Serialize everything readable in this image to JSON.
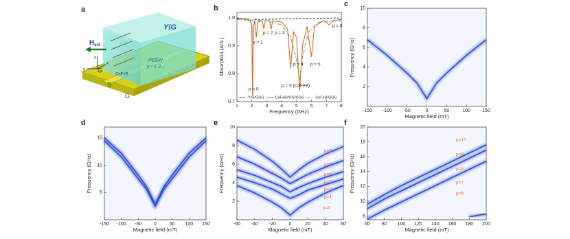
{
  "illustration": {
    "panel": "a",
    "material": "YIG",
    "field": "H",
    "field_sub": "ext",
    "wave": "PSSW",
    "modes": "p = 1, 2...",
    "stripline": "CoFeB",
    "left": "G",
    "signal": "S",
    "right": "G",
    "axis_x": "x",
    "axis_y": "y",
    "axis_z": "z"
  },
  "chart_data": [
    {
      "type": "line",
      "panel": "b",
      "xlabel": "Frequency (GHz)",
      "ylabel": "Absorption (Arb.)",
      "xlim": [
        1,
        8
      ],
      "xticks": [
        1,
        2,
        3,
        4,
        5,
        6,
        7,
        8
      ],
      "ylim": [
        0.7,
        1.02
      ],
      "yticks": [
        0.7,
        0.8,
        0.9,
        {
          "value": 1,
          "label": "1.0"
        }
      ],
      "legend": "bottom",
      "series": [
        {
          "name": "YIG/GGG",
          "color": "#1f2a6b",
          "linestyle": "dashed",
          "x": [
            1.0,
            1.9,
            2.0,
            2.05,
            2.1,
            2.2,
            8.0
          ],
          "values": [
            1.0,
            0.995,
            0.97,
            0.73,
            0.97,
            0.995,
            1.0
          ]
        },
        {
          "name": "CoFeB/YIG/GGG",
          "color": "#e0661a",
          "linestyle": "solid",
          "x": [
            1.0,
            1.5,
            1.9,
            2.0,
            2.05,
            2.1,
            2.2,
            2.3,
            2.4,
            2.7,
            2.8,
            2.9,
            3.2,
            3.3,
            3.4,
            4.0,
            4.4,
            4.6,
            4.8,
            5.0,
            5.2,
            5.4,
            5.7,
            6.0,
            6.2,
            6.8,
            7.2,
            7.4,
            8.0
          ],
          "values": [
            0.998,
            0.995,
            0.99,
            0.97,
            0.72,
            0.97,
            0.985,
            0.93,
            0.985,
            0.99,
            0.96,
            0.99,
            0.99,
            0.96,
            0.99,
            0.985,
            0.96,
            0.82,
            0.95,
            0.93,
            0.74,
            0.9,
            0.97,
            0.86,
            0.97,
            0.99,
            0.975,
            0.99,
            0.995
          ]
        },
        {
          "name": "CoFeB/GGG",
          "color": "#6aa84f",
          "linestyle": "dashdot",
          "x": [
            1.0,
            3.0,
            4.0,
            4.6,
            5.0,
            5.2,
            5.4,
            5.8,
            6.5,
            8.0
          ],
          "values": [
            0.995,
            0.99,
            0.975,
            0.93,
            0.85,
            0.78,
            0.86,
            0.95,
            0.985,
            0.99
          ]
        }
      ],
      "annotations": [
        "p = 0",
        "p = 1",
        "p = 2",
        "p = 3",
        "p = 4",
        "p = 5",
        "p = 6",
        "p = 0 (CoFeB)"
      ]
    },
    {
      "type": "line",
      "panel": "c",
      "xlabel": "Magnetic field (mT)",
      "ylabel": "Frequency (GHz)",
      "xlim": [
        -150,
        150
      ],
      "xticks": [
        -150,
        -100,
        -50,
        0,
        50,
        100,
        150
      ],
      "ylim": [
        0,
        10
      ],
      "yticks": [
        2,
        4,
        6,
        8,
        10
      ],
      "x": [
        -150,
        -100,
        -50,
        -25,
        0,
        25,
        50,
        100,
        150
      ],
      "series": [
        {
          "color": "#2a4fd8",
          "values": [
            6.8,
            5.2,
            3.4,
            2.4,
            0.8,
            2.4,
            3.4,
            5.2,
            6.8
          ]
        }
      ]
    },
    {
      "type": "line",
      "panel": "d",
      "xlabel": "Magnetic field (mT)",
      "ylabel": "Frequency (GHz)",
      "xlim": [
        -150,
        150
      ],
      "xticks": [
        -150,
        -100,
        -50,
        0,
        50,
        100,
        150
      ],
      "ylim": [
        0,
        17
      ],
      "yticks": [
        5,
        10,
        15
      ],
      "x": [
        -150,
        -100,
        -50,
        -25,
        0,
        25,
        50,
        100,
        150
      ],
      "series": [
        {
          "color": "#2a4fd8",
          "values": [
            14.5,
            11.5,
            7.5,
            5.5,
            2.5,
            5.5,
            7.5,
            11.5,
            14.5
          ]
        },
        {
          "color": "#2a4fd8",
          "values": [
            15.0,
            12.2,
            8.2,
            6.0,
            2.8,
            6.0,
            8.2,
            12.2,
            15.0
          ]
        }
      ]
    },
    {
      "type": "line",
      "panel": "e",
      "xlabel": "Magnetic field (mT)",
      "ylabel": "Frequency (GHz)",
      "xlim": [
        -60,
        60
      ],
      "xticks": [
        -60,
        -40,
        -20,
        0,
        20,
        40,
        60
      ],
      "ylim": [
        0,
        10
      ],
      "yticks": [
        2,
        4,
        6,
        8,
        10
      ],
      "x": [
        -60,
        -40,
        -20,
        -10,
        0,
        10,
        20,
        40,
        60
      ],
      "series": [
        {
          "color": "#2a4fd8",
          "values": [
            8.6,
            7.6,
            6.3,
            5.5,
            4.6,
            5.4,
            6.1,
            7.1,
            7.9
          ]
        },
        {
          "color": "#2a4fd8",
          "values": [
            6.8,
            6.0,
            5.0,
            4.5,
            3.9,
            4.4,
            4.9,
            5.7,
            6.4
          ]
        },
        {
          "color": "#2a4fd8",
          "values": [
            5.4,
            4.8,
            4.0,
            3.6,
            3.0,
            3.5,
            3.9,
            4.6,
            5.2
          ]
        },
        {
          "color": "#2a4fd8",
          "values": [
            4.6,
            4.0,
            3.3,
            2.8,
            2.3,
            2.7,
            3.2,
            3.8,
            4.4
          ]
        },
        {
          "color": "#2a4fd8",
          "values": [
            3.7,
            2.9,
            1.9,
            1.3,
            0.5,
            1.3,
            1.9,
            2.9,
            3.7
          ]
        }
      ],
      "annotations": [
        "p=6",
        "p=5",
        "p=4",
        "p=3",
        "p=2",
        "p=1",
        "p=0"
      ]
    },
    {
      "type": "line",
      "panel": "f",
      "xlabel": "Magnetic field (mT)",
      "ylabel": "Frequency (GHz)",
      "xlim": [
        60,
        200
      ],
      "xticks": [
        60,
        80,
        100,
        120,
        140,
        160,
        180,
        200
      ],
      "ylim": [
        7.5,
        20
      ],
      "yticks": [
        8,
        10,
        12,
        14,
        16,
        18,
        20
      ],
      "x": [
        60,
        80,
        100,
        120,
        140,
        160,
        180,
        200
      ],
      "series": [
        {
          "color": "#2a4fd8",
          "values": [
            9.0,
            10.3,
            11.4,
            12.5,
            13.6,
            14.7,
            15.8,
            16.9
          ]
        },
        {
          "color": "#2a4fd8",
          "values": [
            9.6,
            10.9,
            12.1,
            13.2,
            14.3,
            15.4,
            16.5,
            17.6
          ]
        },
        {
          "color": "#2a4fd8",
          "values": [
            7.6,
            8.8,
            9.9,
            11.0,
            12.1,
            13.2,
            14.3,
            15.4
          ]
        },
        {
          "color": "#2a4fd8",
          "values": [
            null,
            null,
            null,
            null,
            null,
            null,
            7.9,
            8.3
          ]
        }
      ],
      "annotations": [
        "p=10",
        "p=9",
        "p=8",
        "p=7",
        "p=6"
      ]
    }
  ]
}
